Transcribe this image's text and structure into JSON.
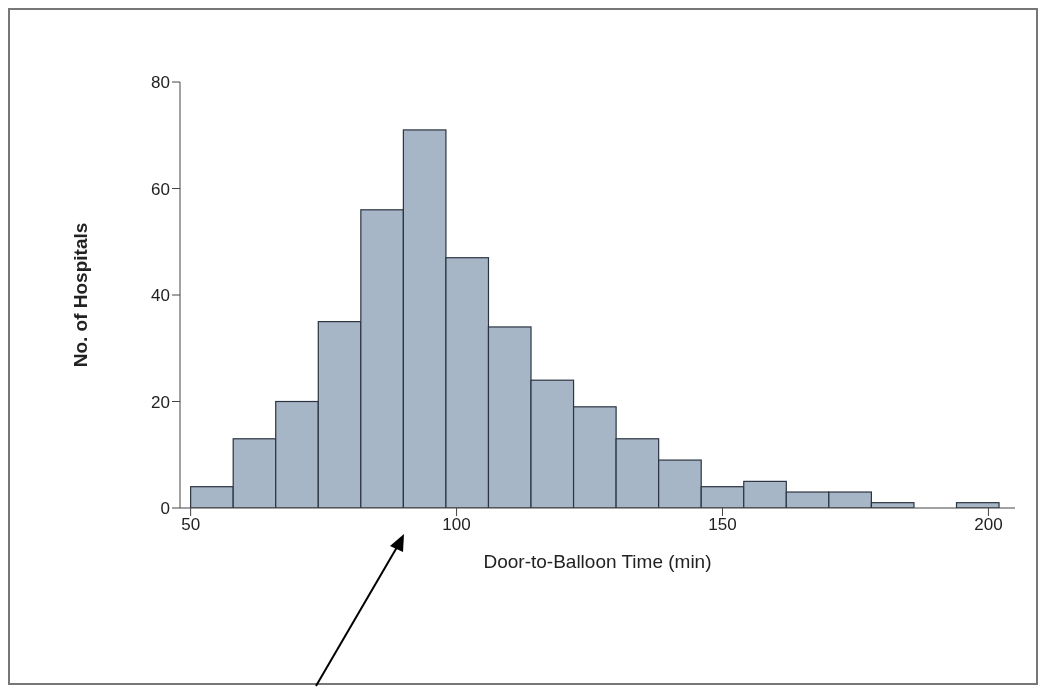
{
  "chart_data": {
    "type": "histogram",
    "xlabel": "Door-to-Balloon Time (min)",
    "ylabel": "No. of Hospitals",
    "bins": [
      50,
      58,
      66,
      74,
      82,
      90,
      98,
      106,
      114,
      122,
      130,
      138,
      146,
      154,
      162,
      170,
      178,
      186,
      194,
      202
    ],
    "values": [
      4,
      13,
      20,
      35,
      56,
      71,
      47,
      34,
      24,
      19,
      13,
      9,
      4,
      5,
      3,
      3,
      1,
      0,
      1
    ],
    "color": "#a7b6c7",
    "xlim": [
      48,
      205
    ],
    "xticks": [
      50,
      100,
      150,
      200
    ],
    "ylim": [
      0,
      80
    ],
    "yticks": [
      0,
      20,
      40,
      60,
      80
    ]
  }
}
